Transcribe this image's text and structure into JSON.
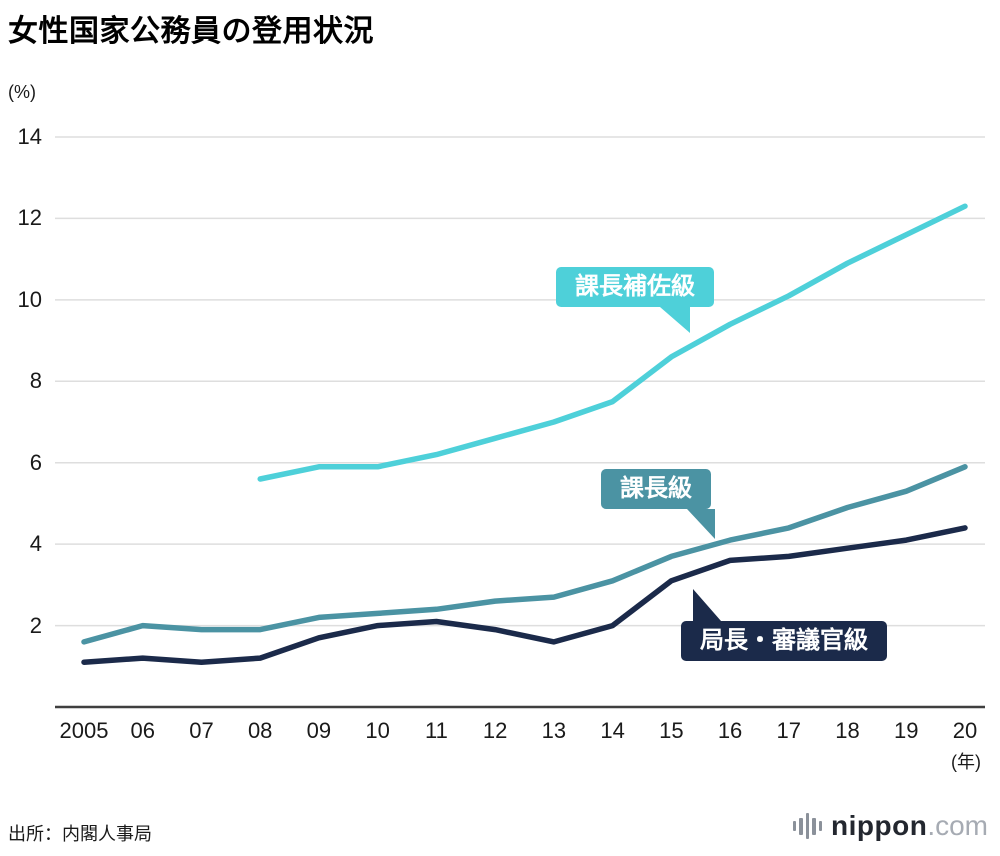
{
  "title": "女性国家公務員の登用状況",
  "y_axis_unit": "(%)",
  "x_axis_unit": "(年)",
  "source": "出所：内閣人事局",
  "logo": {
    "name": "nippon",
    "domain": ".com",
    "icon": "sound-bars"
  },
  "colors": {
    "grid": "#dedede",
    "baseline": "#3f3f3f",
    "text": "#1a1a1a",
    "series_assistant_director": "#4ed0d9",
    "series_director": "#4b93a3",
    "series_director_general": "#1b2a4a"
  },
  "chart_data": {
    "type": "line",
    "title": "女性国家公務員の登用状況",
    "xlabel": "(年)",
    "ylabel": "(%)",
    "ylim": [
      0,
      14
    ],
    "y_ticks": [
      2,
      4,
      6,
      8,
      10,
      12,
      14
    ],
    "grid": true,
    "legend_position": "on-chart-labels",
    "x": [
      2005,
      2006,
      2007,
      2008,
      2009,
      2010,
      2011,
      2012,
      2013,
      2014,
      2015,
      2016,
      2017,
      2018,
      2019,
      2020
    ],
    "x_tick_labels": [
      "2005",
      "06",
      "07",
      "08",
      "09",
      "10",
      "11",
      "12",
      "13",
      "14",
      "15",
      "16",
      "17",
      "18",
      "19",
      "20"
    ],
    "series": [
      {
        "name": "課長補佐級",
        "color": "#4ed0d9",
        "start_index": 3,
        "values": [
          5.6,
          5.9,
          5.9,
          6.2,
          6.6,
          7.0,
          7.5,
          8.6,
          9.4,
          10.1,
          10.9,
          11.6,
          12.3
        ]
      },
      {
        "name": "課長級",
        "color": "#4b93a3",
        "start_index": 0,
        "values": [
          1.6,
          2.0,
          1.9,
          1.9,
          2.2,
          2.3,
          2.4,
          2.6,
          2.7,
          3.1,
          3.7,
          4.1,
          4.4,
          4.9,
          5.3,
          5.9
        ]
      },
      {
        "name": "局長・審議官級",
        "color": "#1b2a4a",
        "start_index": 0,
        "values": [
          1.1,
          1.2,
          1.1,
          1.2,
          1.7,
          2.0,
          2.1,
          1.9,
          1.6,
          2.0,
          3.1,
          3.6,
          3.7,
          3.9,
          4.1,
          4.4
        ]
      }
    ]
  }
}
